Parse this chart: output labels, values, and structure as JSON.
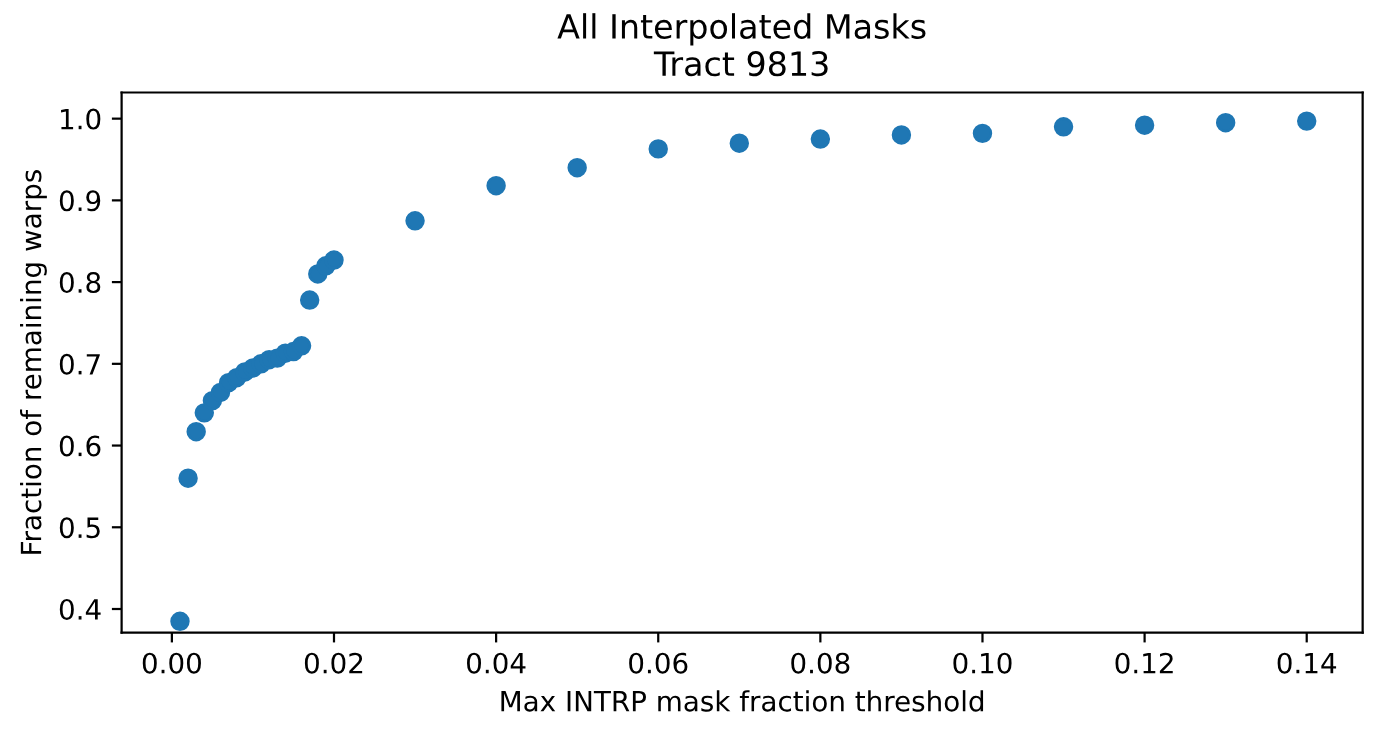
{
  "chart_data": {
    "type": "scatter",
    "title": "All Interpolated Masks\nTract 9813",
    "xlabel": "Max INTRP mask fraction threshold",
    "ylabel": "Fraction of remaining warps",
    "x": [
      0.001,
      0.002,
      0.003,
      0.004,
      0.005,
      0.006,
      0.007,
      0.008,
      0.009,
      0.01,
      0.011,
      0.012,
      0.013,
      0.014,
      0.015,
      0.016,
      0.017,
      0.018,
      0.019,
      0.02,
      0.03,
      0.04,
      0.05,
      0.06,
      0.07,
      0.08,
      0.09,
      0.1,
      0.11,
      0.12,
      0.13,
      0.14
    ],
    "series": [
      {
        "color": "#1f77b4",
        "values": [
          0.385,
          0.56,
          0.617,
          0.64,
          0.655,
          0.665,
          0.677,
          0.683,
          0.69,
          0.695,
          0.7,
          0.705,
          0.707,
          0.713,
          0.715,
          0.722,
          0.778,
          0.81,
          0.82,
          0.827,
          0.875,
          0.918,
          0.94,
          0.963,
          0.97,
          0.975,
          0.98,
          0.982,
          0.99,
          0.992,
          0.995,
          0.997
        ]
      }
    ],
    "xlim": [
      -0.0062,
      0.1469
    ],
    "ylim": [
      0.371,
      1.032
    ],
    "xticks": [
      {
        "value": 0.0,
        "label": "0.00"
      },
      {
        "value": 0.02,
        "label": "0.02"
      },
      {
        "value": 0.04,
        "label": "0.04"
      },
      {
        "value": 0.06,
        "label": "0.06"
      },
      {
        "value": 0.08,
        "label": "0.08"
      },
      {
        "value": 0.1,
        "label": "0.10"
      },
      {
        "value": 0.12,
        "label": "0.12"
      },
      {
        "value": 0.14,
        "label": "0.14"
      }
    ],
    "yticks": [
      0.4,
      0.5,
      0.6,
      0.7,
      0.8,
      0.9,
      {
        "value": 1.0,
        "label": "1.0"
      }
    ],
    "marker": "circle",
    "grid": false,
    "legend": false
  }
}
